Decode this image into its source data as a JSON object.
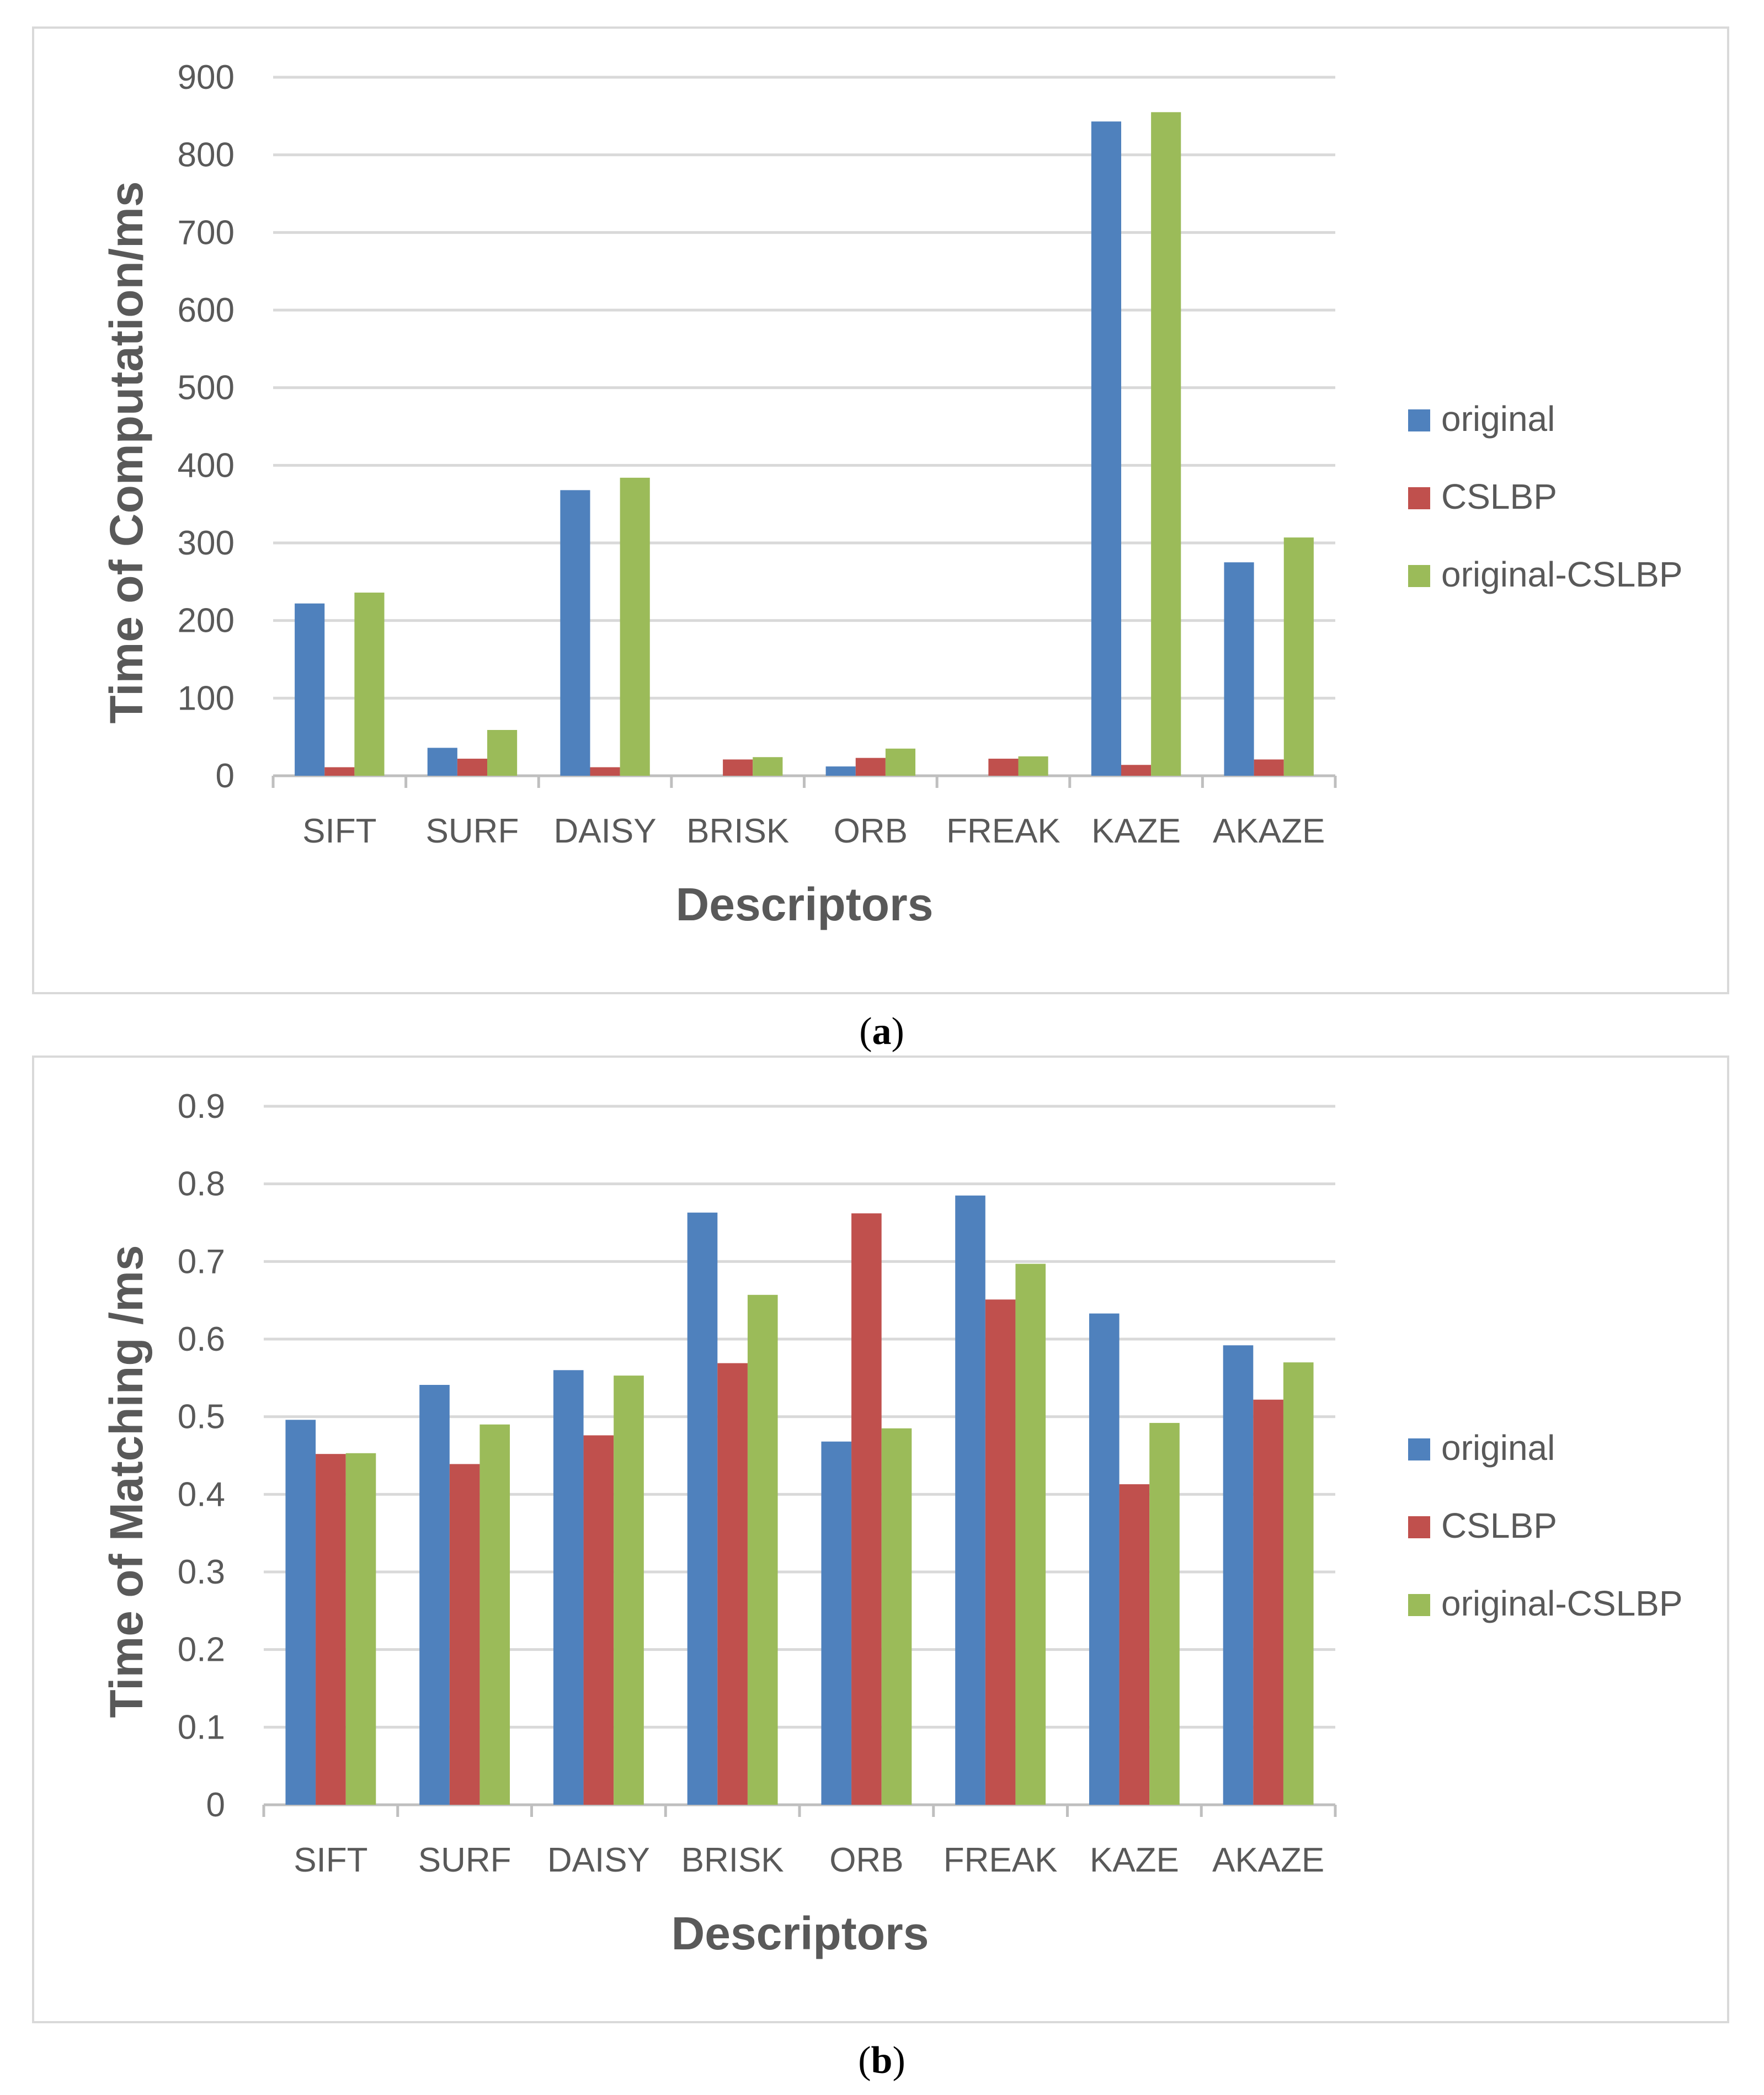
{
  "colors": {
    "original": "#4f81bd",
    "CSLBP": "#c0504d",
    "original-CSLBP": "#9bbb59"
  },
  "chart_data": [
    {
      "type": "bar",
      "panel": "a",
      "title": "",
      "caption_open": "(",
      "caption_letter": "a",
      "caption_close": ")",
      "xlabel": "Descriptors",
      "ylabel": "Time of Computation/ms",
      "ylim": [
        0,
        900
      ],
      "yticks": [
        0,
        100,
        200,
        300,
        400,
        500,
        600,
        700,
        800,
        900
      ],
      "ytick_labels": [
        "0",
        "100",
        "200",
        "300",
        "400",
        "500",
        "600",
        "700",
        "800",
        "900"
      ],
      "grid": true,
      "legend_position": "right",
      "categories": [
        "SIFT",
        "SURF",
        "DAISY",
        "BRISK",
        "ORB",
        "FREAK",
        "KAZE",
        "AKAZE"
      ],
      "series": [
        {
          "name": "original",
          "values": [
            222,
            36,
            368,
            0,
            12,
            0,
            843,
            275
          ]
        },
        {
          "name": "CSLBP",
          "values": [
            11,
            22,
            11,
            21,
            23,
            22,
            14,
            21
          ]
        },
        {
          "name": "original-CSLBP",
          "values": [
            236,
            59,
            384,
            24,
            35,
            25,
            855,
            307
          ]
        }
      ]
    },
    {
      "type": "bar",
      "panel": "b",
      "title": "",
      "caption_open": "(",
      "caption_letter": "b",
      "caption_close": ")",
      "xlabel": "Descriptors",
      "ylabel": "Time of Matching /ms",
      "ylim": [
        0,
        0.9
      ],
      "yticks": [
        0,
        0.1,
        0.2,
        0.3,
        0.4,
        0.5,
        0.6,
        0.7,
        0.8,
        0.9
      ],
      "ytick_labels": [
        "0",
        "0.1",
        "0.2",
        "0.3",
        "0.4",
        "0.5",
        "0.6",
        "0.7",
        "0.8",
        "0.9"
      ],
      "grid": true,
      "legend_position": "right",
      "categories": [
        "SIFT",
        "SURF",
        "DAISY",
        "BRISK",
        "ORB",
        "FREAK",
        "KAZE",
        "AKAZE"
      ],
      "series": [
        {
          "name": "original",
          "values": [
            0.496,
            0.541,
            0.56,
            0.763,
            0.468,
            0.785,
            0.633,
            0.592
          ]
        },
        {
          "name": "CSLBP",
          "values": [
            0.452,
            0.439,
            0.476,
            0.569,
            0.762,
            0.651,
            0.413,
            0.522
          ]
        },
        {
          "name": "original-CSLBP",
          "values": [
            0.453,
            0.49,
            0.553,
            0.657,
            0.485,
            0.697,
            0.492,
            0.57
          ]
        }
      ]
    }
  ]
}
